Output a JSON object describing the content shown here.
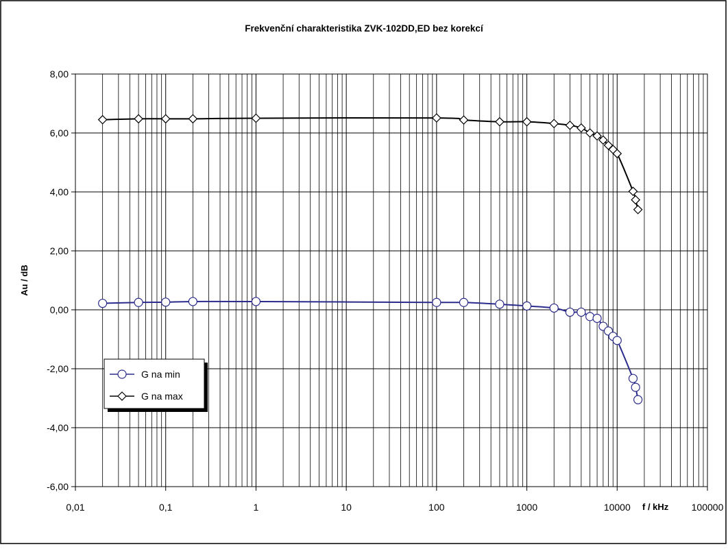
{
  "chart_data": {
    "type": "line",
    "title": "Frekvenční charakteristika  ZVK-102DD,ED bez korekcí",
    "xlabel": "f / kHz",
    "ylabel": "Au / dB",
    "x_scale": "log",
    "xlim": [
      0.01,
      100000
    ],
    "ylim": [
      -6,
      8
    ],
    "x_ticks": [
      0.01,
      0.1,
      1,
      10,
      100,
      1000,
      10000,
      100000
    ],
    "x_tick_labels": [
      "0,01",
      "0,1",
      "1",
      "10",
      "100",
      "1000",
      "10000",
      "100000"
    ],
    "y_ticks": [
      -6,
      -4,
      -2,
      0,
      2,
      4,
      6,
      8
    ],
    "y_tick_labels": [
      "-6,00",
      "-4,00",
      "-2,00",
      "0,00",
      "2,00",
      "4,00",
      "6,00",
      "8,00"
    ],
    "grid": true,
    "legend_position": "left",
    "series": [
      {
        "name": "G na min",
        "color": "#2b2b8c",
        "marker": "circle",
        "x": [
          0.02,
          0.05,
          0.1,
          0.2,
          1,
          100,
          200,
          500,
          1000,
          2000,
          3000,
          4000,
          5000,
          6000,
          7000,
          8000,
          9000,
          10000,
          15000,
          16000,
          17000
        ],
        "y": [
          0.22,
          0.25,
          0.26,
          0.28,
          0.28,
          0.25,
          0.25,
          0.19,
          0.13,
          0.06,
          -0.08,
          -0.08,
          -0.23,
          -0.29,
          -0.56,
          -0.72,
          -0.9,
          -1.04,
          -2.33,
          -2.63,
          -3.05
        ]
      },
      {
        "name": "G na max",
        "color": "#000000",
        "marker": "diamond",
        "x": [
          0.02,
          0.05,
          0.1,
          0.2,
          1,
          100,
          200,
          500,
          1000,
          2000,
          3000,
          4000,
          5000,
          6000,
          7000,
          8000,
          9000,
          10000,
          15000,
          16000,
          17000
        ],
        "y": [
          6.45,
          6.48,
          6.48,
          6.48,
          6.5,
          6.51,
          6.44,
          6.38,
          6.38,
          6.32,
          6.26,
          6.17,
          6.0,
          5.9,
          5.76,
          5.58,
          5.44,
          5.3,
          4.02,
          3.73,
          3.4
        ]
      }
    ]
  }
}
